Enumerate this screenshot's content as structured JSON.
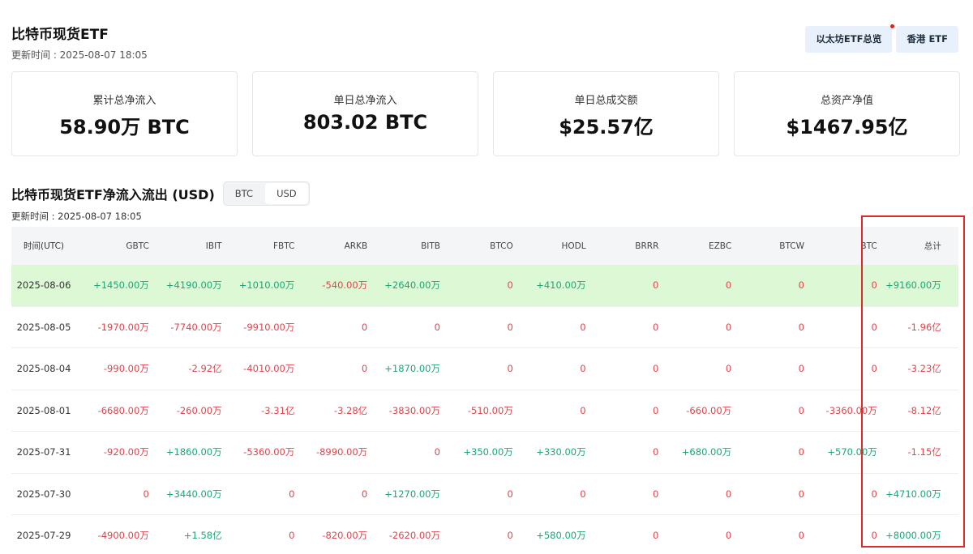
{
  "header": {
    "title": "比特币现货ETF",
    "update_time": "更新时间 : 2025-08-07 18:05"
  },
  "top_buttons": [
    {
      "label": "以太坊ETF总览",
      "has_dot": true
    },
    {
      "label": "香港 ETF",
      "has_dot": false
    }
  ],
  "stats": [
    {
      "label": "累计总净流入",
      "value": "58.90万 BTC"
    },
    {
      "label": "单日总净流入",
      "value": "803.02 BTC"
    },
    {
      "label": "单日总成交额",
      "value": "$25.57亿"
    },
    {
      "label": "总资产净值",
      "value": "$1467.95亿"
    }
  ],
  "section": {
    "title": "比特币现货ETF净流入流出 (USD)",
    "toggle_btc": "BTC",
    "toggle_usd": "USD",
    "active_toggle": "USD",
    "update_time": "更新时间 : 2025-08-07 18:05"
  },
  "table": {
    "columns": [
      "时间(UTC)",
      "GBTC",
      "IBIT",
      "FBTC",
      "ARKB",
      "BITB",
      "BTCO",
      "HODL",
      "BRRR",
      "EZBC",
      "BTCW",
      "BTC",
      "总计"
    ],
    "rows": [
      {
        "highlight": true,
        "cells": [
          "2025-08-06",
          "+1450.00万",
          "+4190.00万",
          "+1010.00万",
          "-540.00万",
          "+2640.00万",
          "0",
          "+410.00万",
          "0",
          "0",
          "0",
          "0",
          "+9160.00万"
        ]
      },
      {
        "highlight": false,
        "cells": [
          "2025-08-05",
          "-1970.00万",
          "-7740.00万",
          "-9910.00万",
          "0",
          "0",
          "0",
          "0",
          "0",
          "0",
          "0",
          "0",
          "-1.96亿"
        ]
      },
      {
        "highlight": false,
        "cells": [
          "2025-08-04",
          "-990.00万",
          "-2.92亿",
          "-4010.00万",
          "0",
          "+1870.00万",
          "0",
          "0",
          "0",
          "0",
          "0",
          "0",
          "-3.23亿"
        ]
      },
      {
        "highlight": false,
        "cells": [
          "2025-08-01",
          "-6680.00万",
          "-260.00万",
          "-3.31亿",
          "-3.28亿",
          "-3830.00万",
          "-510.00万",
          "0",
          "0",
          "-660.00万",
          "0",
          "-3360.00万",
          "-8.12亿"
        ]
      },
      {
        "highlight": false,
        "cells": [
          "2025-07-31",
          "-920.00万",
          "+1860.00万",
          "-5360.00万",
          "-8990.00万",
          "0",
          "+350.00万",
          "+330.00万",
          "0",
          "+680.00万",
          "0",
          "+570.00万",
          "-1.15亿"
        ]
      },
      {
        "highlight": false,
        "cells": [
          "2025-07-30",
          "0",
          "+3440.00万",
          "0",
          "0",
          "+1270.00万",
          "0",
          "0",
          "0",
          "0",
          "0",
          "0",
          "+4710.00万"
        ]
      },
      {
        "highlight": false,
        "cells": [
          "2025-07-29",
          "-4900.00万",
          "+1.58亿",
          "0",
          "-820.00万",
          "-2620.00万",
          "0",
          "+580.00万",
          "0",
          "0",
          "0",
          "0",
          "+8000.00万"
        ]
      }
    ]
  },
  "colors": {
    "positive": "#1aa874",
    "negative": "#e0444c",
    "highlight_row": "#ddf8d4",
    "annotation_frame": "#e02a2a"
  }
}
